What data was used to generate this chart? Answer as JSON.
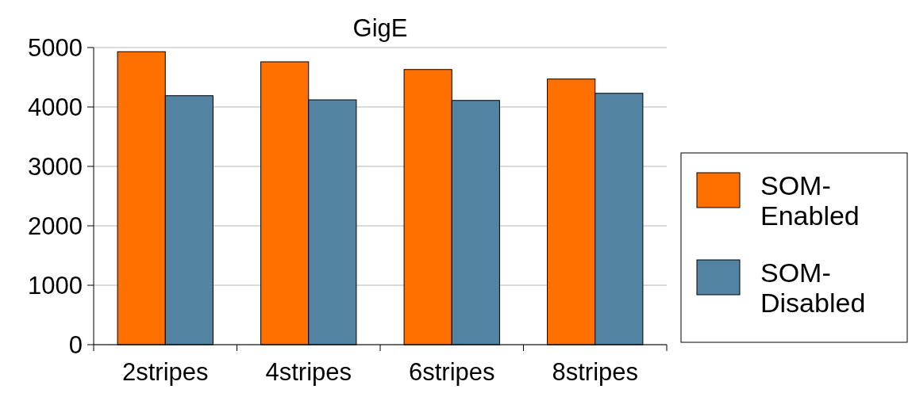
{
  "chart_data": {
    "type": "bar",
    "title": "GigE",
    "categories": [
      "2stripes",
      "4stripes",
      "6stripes",
      "8stripes"
    ],
    "series": [
      {
        "name": "SOM-Enabled",
        "color": "#ff7000",
        "values": [
          4930,
          4760,
          4630,
          4470
        ]
      },
      {
        "name": "SOM-Disabled",
        "color": "#5383a3",
        "values": [
          4190,
          4120,
          4110,
          4230
        ]
      }
    ],
    "ylim": [
      0,
      5000
    ],
    "yticks": [
      0,
      1000,
      2000,
      3000,
      4000,
      5000
    ],
    "grid": "y",
    "legend": "right"
  }
}
